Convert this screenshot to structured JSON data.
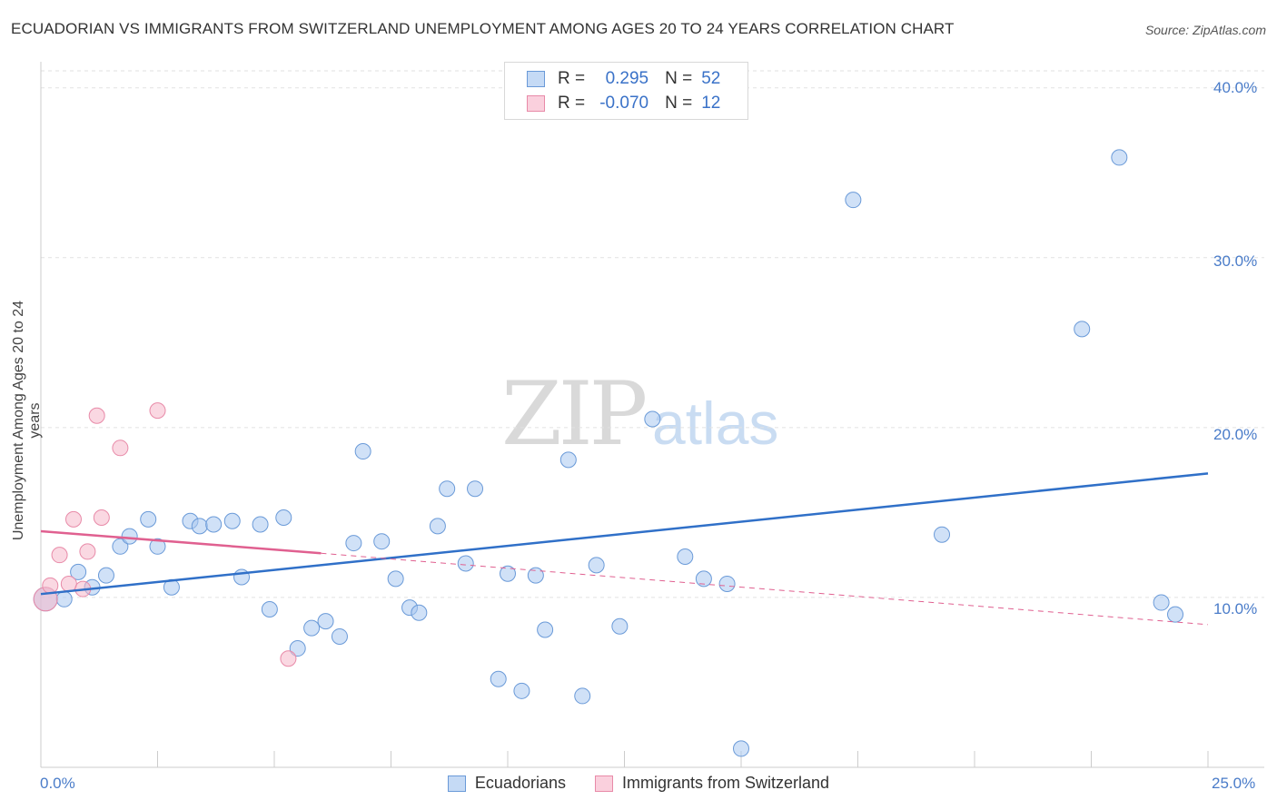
{
  "title": "ECUADORIAN VS IMMIGRANTS FROM SWITZERLAND UNEMPLOYMENT AMONG AGES 20 TO 24 YEARS CORRELATION CHART",
  "source": "Source: ZipAtlas.com",
  "watermark": {
    "zip": "ZIP",
    "atlas": "atlas"
  },
  "legend": {
    "rows": [
      {
        "r_label": "R =",
        "r_value": "0.295",
        "n_label": "N =",
        "n_value": "52",
        "color": "#aac8f0"
      },
      {
        "r_label": "R =",
        "r_value": "-0.070",
        "n_label": "N =",
        "n_value": "12",
        "color": "#f5b8cb"
      }
    ]
  },
  "bottom_legend": [
    "Ecuadorians",
    "Immigrants from Switzerland"
  ],
  "chart_data": {
    "type": "scatter",
    "title": "ECUADORIAN VS IMMIGRANTS FROM SWITZERLAND UNEMPLOYMENT AMONG AGES 20 TO 24 YEARS CORRELATION CHART",
    "xlabel": "",
    "ylabel": "Unemployment Among Ages 20 to 24 years",
    "xlim": [
      0,
      25
    ],
    "ylim": [
      0,
      41
    ],
    "x_tick_labels": [
      "0.0%",
      "25.0%"
    ],
    "y_ticks": [
      10,
      20,
      30,
      40
    ],
    "y_tick_labels": [
      "10.0%",
      "20.0%",
      "30.0%",
      "40.0%"
    ],
    "grid": true,
    "series": [
      {
        "name": "Ecuadorians",
        "color": "#aac8f0",
        "stroke": "#6a9ad8",
        "trend": {
          "x": [
            0,
            25
          ],
          "y": [
            10.2,
            17.3
          ],
          "color": "#3070c8"
        },
        "points": [
          [
            0.1,
            9.9
          ],
          [
            0.5,
            9.9
          ],
          [
            0.8,
            11.5
          ],
          [
            1.1,
            10.6
          ],
          [
            1.4,
            11.3
          ],
          [
            1.7,
            13.0
          ],
          [
            1.9,
            13.6
          ],
          [
            2.3,
            14.6
          ],
          [
            2.5,
            13.0
          ],
          [
            2.8,
            10.6
          ],
          [
            3.2,
            14.5
          ],
          [
            3.4,
            14.2
          ],
          [
            3.7,
            14.3
          ],
          [
            4.1,
            14.5
          ],
          [
            4.3,
            11.2
          ],
          [
            4.7,
            14.3
          ],
          [
            4.9,
            9.3
          ],
          [
            5.2,
            14.7
          ],
          [
            5.5,
            7.0
          ],
          [
            5.8,
            8.2
          ],
          [
            6.1,
            8.6
          ],
          [
            6.4,
            7.7
          ],
          [
            6.7,
            13.2
          ],
          [
            6.9,
            18.6
          ],
          [
            7.3,
            13.3
          ],
          [
            7.6,
            11.1
          ],
          [
            7.9,
            9.4
          ],
          [
            8.1,
            9.1
          ],
          [
            8.5,
            14.2
          ],
          [
            8.7,
            16.4
          ],
          [
            9.1,
            12.0
          ],
          [
            9.3,
            16.4
          ],
          [
            9.8,
            5.2
          ],
          [
            10.0,
            11.4
          ],
          [
            10.3,
            4.5
          ],
          [
            10.6,
            11.3
          ],
          [
            10.8,
            8.1
          ],
          [
            11.3,
            18.1
          ],
          [
            11.6,
            4.2
          ],
          [
            11.9,
            11.9
          ],
          [
            12.4,
            8.3
          ],
          [
            13.1,
            20.5
          ],
          [
            13.8,
            12.4
          ],
          [
            14.2,
            11.1
          ],
          [
            14.7,
            10.8
          ],
          [
            15.0,
            1.1
          ],
          [
            17.4,
            33.4
          ],
          [
            19.3,
            13.7
          ],
          [
            22.3,
            25.8
          ],
          [
            23.1,
            35.9
          ],
          [
            24.0,
            9.7
          ],
          [
            24.3,
            9.0
          ]
        ]
      },
      {
        "name": "Immigrants from Switzerland",
        "color": "#f5b8cb",
        "stroke": "#e88aa8",
        "trend": {
          "x": [
            0,
            6.0
          ],
          "y": [
            13.9,
            12.6
          ],
          "dashed_to": [
            25,
            8.4
          ],
          "color": "#e06090"
        },
        "points": [
          [
            0.1,
            9.9
          ],
          [
            0.2,
            10.7
          ],
          [
            0.4,
            12.5
          ],
          [
            0.6,
            10.8
          ],
          [
            0.7,
            14.6
          ],
          [
            0.9,
            10.5
          ],
          [
            1.0,
            12.7
          ],
          [
            1.2,
            20.7
          ],
          [
            1.3,
            14.7
          ],
          [
            1.7,
            18.8
          ],
          [
            2.5,
            21.0
          ],
          [
            5.3,
            6.4
          ]
        ]
      }
    ]
  }
}
